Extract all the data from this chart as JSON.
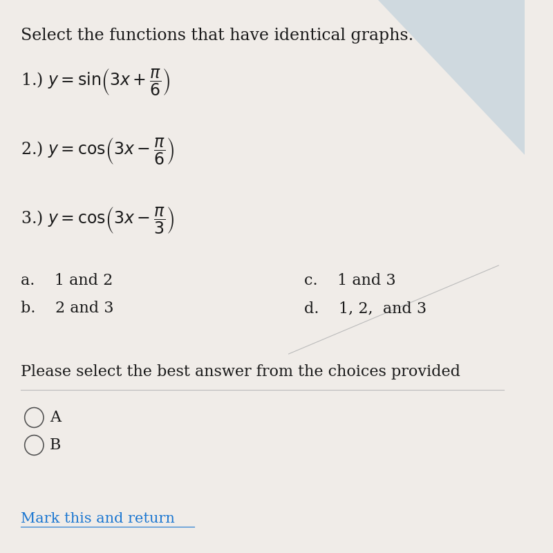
{
  "background_color": "#f0ece8",
  "title": "Select the functions that have identical graphs.",
  "title_fontsize": 17,
  "text_color": "#1a1a1a",
  "choice_a": "a.    1 and 2",
  "choice_b": "b.    2 and 3",
  "choice_c": "c.    1 and 3",
  "choice_d": "d.    1, 2,  and 3",
  "prompt": "Please select the best answer from the choices provided",
  "radio_A_label": "A",
  "radio_B_label": "B",
  "mark_link": "Mark this and return",
  "link_color": "#1a76d1",
  "radio_color": "#555555",
  "eq_fontsize": 17,
  "choice_fontsize": 16,
  "prompt_fontsize": 16,
  "link_fontsize": 15,
  "divider_color": "#bbbbbb",
  "top_right_color": "#b0c8d8"
}
